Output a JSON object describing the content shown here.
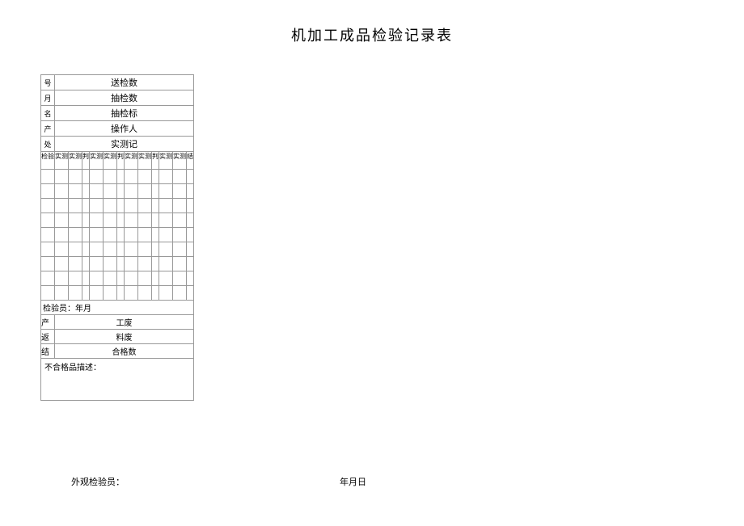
{
  "title": "机加工成品检验记录表",
  "header_rows": [
    {
      "left": "号",
      "label": "送检数"
    },
    {
      "left": "月",
      "label": "抽检数"
    },
    {
      "left": "名",
      "label": "抽检标"
    },
    {
      "left": "产",
      "label": "操作人"
    },
    {
      "left": "处",
      "label": "实测记"
    }
  ],
  "sub_headers": [
    "检验",
    "实测",
    "实测",
    "判",
    "实测",
    "实测",
    "判",
    "实测",
    "实测",
    "判",
    "实测",
    "实测",
    "结"
  ],
  "inspector_row": "检验员：年月",
  "footer_rows": [
    {
      "left": "产",
      "label": "工废"
    },
    {
      "left": "返",
      "label": "料废"
    },
    {
      "left": "结",
      "label": "合格数"
    }
  ],
  "desc_label": "不合格品描述：",
  "bottom_signer": "外观检验员：",
  "bottom_date": "年月日",
  "colors": {
    "border": "#999999",
    "background": "#ffffff",
    "text": "#000000"
  },
  "data_row_count": 9
}
